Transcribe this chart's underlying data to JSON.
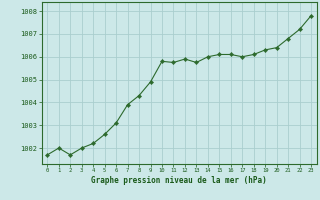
{
  "x": [
    0,
    1,
    2,
    3,
    4,
    5,
    6,
    7,
    8,
    9,
    10,
    11,
    12,
    13,
    14,
    15,
    16,
    17,
    18,
    19,
    20,
    21,
    22,
    23
  ],
  "y": [
    1001.7,
    1002.0,
    1001.7,
    1002.0,
    1002.2,
    1002.6,
    1003.1,
    1003.9,
    1004.3,
    1004.9,
    1005.8,
    1005.75,
    1005.9,
    1005.75,
    1006.0,
    1006.1,
    1006.1,
    1006.0,
    1006.1,
    1006.3,
    1006.4,
    1006.8,
    1007.2,
    1007.8
  ],
  "line_color": "#2d6a2d",
  "marker_color": "#2d6a2d",
  "bg_color": "#cce8e8",
  "grid_color": "#aacece",
  "xlabel": "Graphe pression niveau de la mer (hPa)",
  "xlabel_color": "#1a5a1a",
  "ylabel_ticks": [
    1002,
    1003,
    1004,
    1005,
    1006,
    1007,
    1008
  ],
  "ylim": [
    1001.3,
    1008.4
  ],
  "xlim": [
    -0.5,
    23.5
  ],
  "tick_color": "#1a5a1a",
  "axis_color": "#2d6a2d",
  "figsize": [
    3.2,
    2.0
  ],
  "dpi": 100
}
